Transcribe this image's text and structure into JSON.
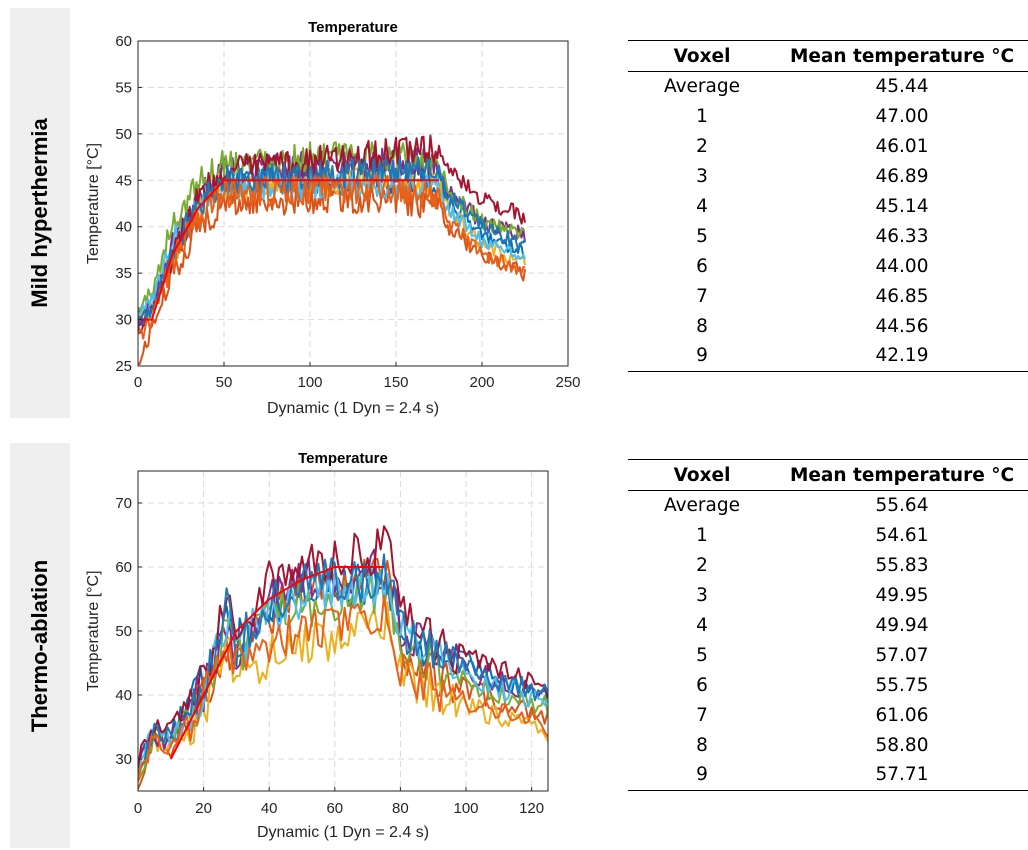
{
  "panels": [
    {
      "label": "Mild hyperthermia",
      "table": {
        "headers": [
          "Voxel",
          "Mean temperature °C"
        ],
        "rows": [
          [
            "Average",
            "45.44"
          ],
          [
            "1",
            "47.00"
          ],
          [
            "2",
            "46.01"
          ],
          [
            "3",
            "46.89"
          ],
          [
            "4",
            "45.14"
          ],
          [
            "5",
            "46.33"
          ],
          [
            "6",
            "44.00"
          ],
          [
            "7",
            "46.85"
          ],
          [
            "8",
            "44.56"
          ],
          [
            "9",
            "42.19"
          ]
        ]
      }
    },
    {
      "label": "Thermo-ablation",
      "table": {
        "headers": [
          "Voxel",
          "Mean temperature °C"
        ],
        "rows": [
          [
            "Average",
            "55.64"
          ],
          [
            "1",
            "54.61"
          ],
          [
            "2",
            "55.83"
          ],
          [
            "3",
            "49.95"
          ],
          [
            "4",
            "49.94"
          ],
          [
            "5",
            "57.07"
          ],
          [
            "6",
            "55.75"
          ],
          [
            "7",
            "61.06"
          ],
          [
            "8",
            "58.80"
          ],
          [
            "9",
            "57.71"
          ]
        ]
      }
    }
  ],
  "chart_data": [
    {
      "type": "line",
      "title": "Temperature",
      "xlabel": "Dynamic (1 Dyn = 2.4 s)",
      "ylabel": "Temperature [°C]",
      "xlim": [
        0,
        250
      ],
      "ylim": [
        25,
        60
      ],
      "xticks": [
        0,
        50,
        100,
        150,
        200,
        250
      ],
      "yticks": [
        25,
        30,
        35,
        40,
        45,
        50,
        55,
        60
      ],
      "grid": true,
      "target": {
        "color": "#ff0000",
        "x": [
          1,
          8,
          20,
          35,
          50,
          175
        ],
        "y": [
          30,
          30,
          37,
          42,
          45,
          45
        ]
      },
      "series": [
        {
          "color": "#0072bd",
          "x": [
            0,
            8,
            20,
            35,
            50,
            100,
            150,
            175,
            180,
            200,
            225
          ],
          "y": [
            30,
            31,
            37,
            42,
            45,
            45,
            45,
            45,
            43,
            39,
            37.5
          ]
        },
        {
          "color": "#d95319",
          "x": [
            0,
            8,
            20,
            35,
            50,
            100,
            150,
            175,
            180,
            200,
            225
          ],
          "y": [
            25,
            29,
            35,
            40,
            42.5,
            43,
            43,
            42,
            40,
            37,
            35
          ]
        },
        {
          "color": "#edb120",
          "x": [
            0,
            8,
            20,
            35,
            50,
            100,
            150,
            175,
            180,
            200,
            225
          ],
          "y": [
            30,
            31,
            37,
            42,
            44.5,
            45,
            45,
            44.5,
            42,
            38,
            36
          ]
        },
        {
          "color": "#7e2f8e",
          "x": [
            0,
            8,
            20,
            35,
            50,
            100,
            150,
            175,
            180,
            200,
            225
          ],
          "y": [
            30,
            31.5,
            38,
            43,
            46,
            46.5,
            47,
            47,
            44,
            40.5,
            39
          ]
        },
        {
          "color": "#77ac30",
          "x": [
            0,
            8,
            20,
            35,
            50,
            100,
            150,
            175,
            180,
            200,
            225
          ],
          "y": [
            31,
            33,
            40,
            45,
            47,
            47.5,
            47.5,
            47,
            44,
            40.5,
            39
          ]
        },
        {
          "color": "#4dbeee",
          "x": [
            0,
            8,
            20,
            35,
            50,
            100,
            150,
            175,
            180,
            200,
            225
          ],
          "y": [
            30,
            32,
            38,
            43,
            44.5,
            44.5,
            44.5,
            44.5,
            42,
            38.5,
            36.5
          ]
        },
        {
          "color": "#a2142f",
          "x": [
            0,
            8,
            20,
            35,
            50,
            100,
            150,
            175,
            180,
            200,
            225
          ],
          "y": [
            29,
            31,
            37,
            43,
            46,
            47,
            48,
            48.5,
            46,
            43,
            41
          ]
        },
        {
          "color": "#1f77b4",
          "x": [
            0,
            8,
            20,
            35,
            50,
            100,
            150,
            175,
            180,
            200,
            225
          ],
          "y": [
            30,
            31,
            37,
            42.5,
            45,
            45.5,
            46,
            46,
            43.5,
            40,
            38
          ]
        },
        {
          "color": "#e8611a",
          "x": [
            0,
            8,
            20,
            35,
            50,
            100,
            150,
            175,
            180,
            200,
            225
          ],
          "y": [
            28,
            30,
            36,
            41,
            43.5,
            44,
            44,
            43,
            40.5,
            37,
            35.5
          ]
        }
      ]
    },
    {
      "type": "line",
      "title": "Temperature",
      "xlabel": "Dynamic (1 Dyn = 2.4 s)",
      "ylabel": "Temperature [°C]",
      "xlim": [
        0,
        125
      ],
      "ylim": [
        25,
        75
      ],
      "xticks": [
        0,
        20,
        40,
        60,
        80,
        100,
        120
      ],
      "yticks": [
        30,
        40,
        50,
        60,
        70
      ],
      "grid": true,
      "target": {
        "color": "#ff0000",
        "x": [
          10,
          20,
          30,
          40,
          50,
          60,
          75
        ],
        "y": [
          30,
          40,
          50,
          55,
          58,
          60,
          60
        ]
      },
      "series": [
        {
          "color": "#0072bd",
          "x": [
            0,
            5,
            10,
            20,
            27,
            30,
            40,
            50,
            60,
            70,
            76,
            80,
            90,
            100,
            110,
            125
          ],
          "y": [
            29,
            35,
            34,
            42,
            56,
            48,
            54,
            56,
            57,
            57,
            58,
            50,
            47,
            45,
            43,
            40
          ]
        },
        {
          "color": "#d95319",
          "x": [
            0,
            5,
            10,
            20,
            27,
            30,
            40,
            50,
            60,
            70,
            76,
            80,
            90,
            100,
            110,
            125
          ],
          "y": [
            27,
            33,
            32,
            40,
            48,
            46,
            52,
            58,
            58,
            58,
            59,
            47,
            43,
            41,
            39,
            37
          ]
        },
        {
          "color": "#edb120",
          "x": [
            0,
            5,
            10,
            20,
            27,
            30,
            40,
            50,
            60,
            70,
            76,
            80,
            90,
            100,
            110,
            125
          ],
          "y": [
            28,
            33,
            32,
            38,
            46,
            43,
            46,
            48,
            49,
            50,
            51,
            44,
            40,
            38,
            37,
            34
          ]
        },
        {
          "color": "#7e2f8e",
          "x": [
            0,
            5,
            10,
            20,
            27,
            30,
            40,
            50,
            60,
            70,
            76,
            80,
            90,
            100,
            110,
            125
          ],
          "y": [
            29,
            34,
            33,
            41,
            50,
            46,
            55,
            58,
            59,
            59,
            60,
            51,
            46,
            44,
            42,
            40
          ]
        },
        {
          "color": "#77ac30",
          "x": [
            0,
            5,
            10,
            20,
            27,
            30,
            40,
            50,
            60,
            70,
            76,
            80,
            90,
            100,
            110,
            125
          ],
          "y": [
            28,
            33,
            33,
            40,
            50,
            45,
            52,
            54,
            55,
            56,
            57,
            49,
            45,
            42,
            40,
            38
          ]
        },
        {
          "color": "#4dbeee",
          "x": [
            0,
            5,
            10,
            20,
            27,
            30,
            40,
            50,
            60,
            70,
            76,
            80,
            90,
            100,
            110,
            125
          ],
          "y": [
            29,
            34,
            33,
            41,
            52,
            47,
            53,
            55,
            56,
            57,
            58,
            50,
            46,
            43,
            41,
            39
          ]
        },
        {
          "color": "#a2142f",
          "x": [
            0,
            5,
            10,
            20,
            27,
            30,
            40,
            50,
            60,
            70,
            76,
            80,
            90,
            100,
            110,
            125
          ],
          "y": [
            30,
            35,
            34,
            43,
            55,
            49,
            58,
            61,
            61,
            62,
            63,
            53,
            48,
            46,
            44,
            41
          ]
        },
        {
          "color": "#1f77b4",
          "x": [
            0,
            5,
            10,
            20,
            27,
            30,
            40,
            50,
            60,
            70,
            76,
            80,
            90,
            100,
            110,
            125
          ],
          "y": [
            29,
            34,
            33,
            41,
            54,
            48,
            55,
            57,
            58,
            58,
            59,
            51,
            46,
            44,
            42,
            40
          ]
        },
        {
          "color": "#e8611a",
          "x": [
            0,
            5,
            10,
            20,
            27,
            30,
            40,
            50,
            60,
            70,
            76,
            80,
            90,
            100,
            110,
            125
          ],
          "y": [
            28,
            33,
            32,
            39,
            47,
            44,
            48,
            50,
            51,
            52,
            53,
            45,
            41,
            39,
            38,
            35
          ]
        }
      ]
    }
  ]
}
